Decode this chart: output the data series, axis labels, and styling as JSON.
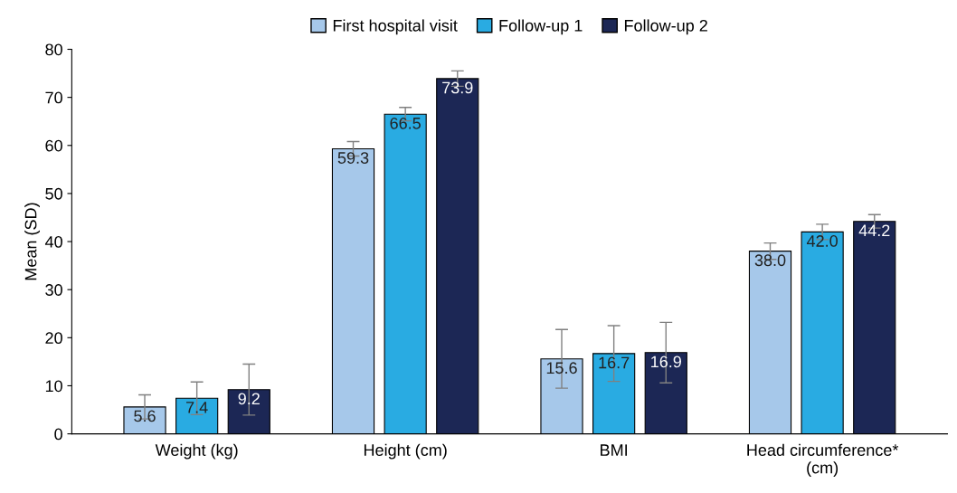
{
  "chart_data": {
    "type": "bar",
    "ylabel": "Mean (SD)",
    "categories": [
      "Weight (kg)",
      "Height (cm)",
      "BMI",
      "Head circumference*\n(cm)"
    ],
    "series": [
      {
        "name": "First hospital visit",
        "color": "#a6c8ea",
        "values": [
          5.6,
          59.3,
          15.6,
          38.0
        ],
        "value_labels": [
          "5.6",
          "59.3",
          "15.6",
          "38.0"
        ],
        "errors": [
          2.5,
          1.5,
          6.1,
          1.7
        ]
      },
      {
        "name": "Follow-up 1",
        "color": "#29abe2",
        "values": [
          7.4,
          66.5,
          16.7,
          42.0
        ],
        "value_labels": [
          "7.4",
          "66.5",
          "16.7",
          "42.0"
        ],
        "errors": [
          3.4,
          1.4,
          5.8,
          1.6
        ]
      },
      {
        "name": "Follow-up 2",
        "color": "#1c2755",
        "values": [
          9.2,
          73.9,
          16.9,
          44.2
        ],
        "value_labels": [
          "9.2",
          "73.9",
          "16.9",
          "44.2"
        ],
        "errors": [
          5.3,
          1.6,
          6.3,
          1.4
        ]
      }
    ],
    "ylim": [
      0,
      80
    ],
    "yticks": [
      0,
      10,
      20,
      30,
      40,
      50,
      60,
      70,
      80
    ],
    "grid": false,
    "legend": "top"
  }
}
